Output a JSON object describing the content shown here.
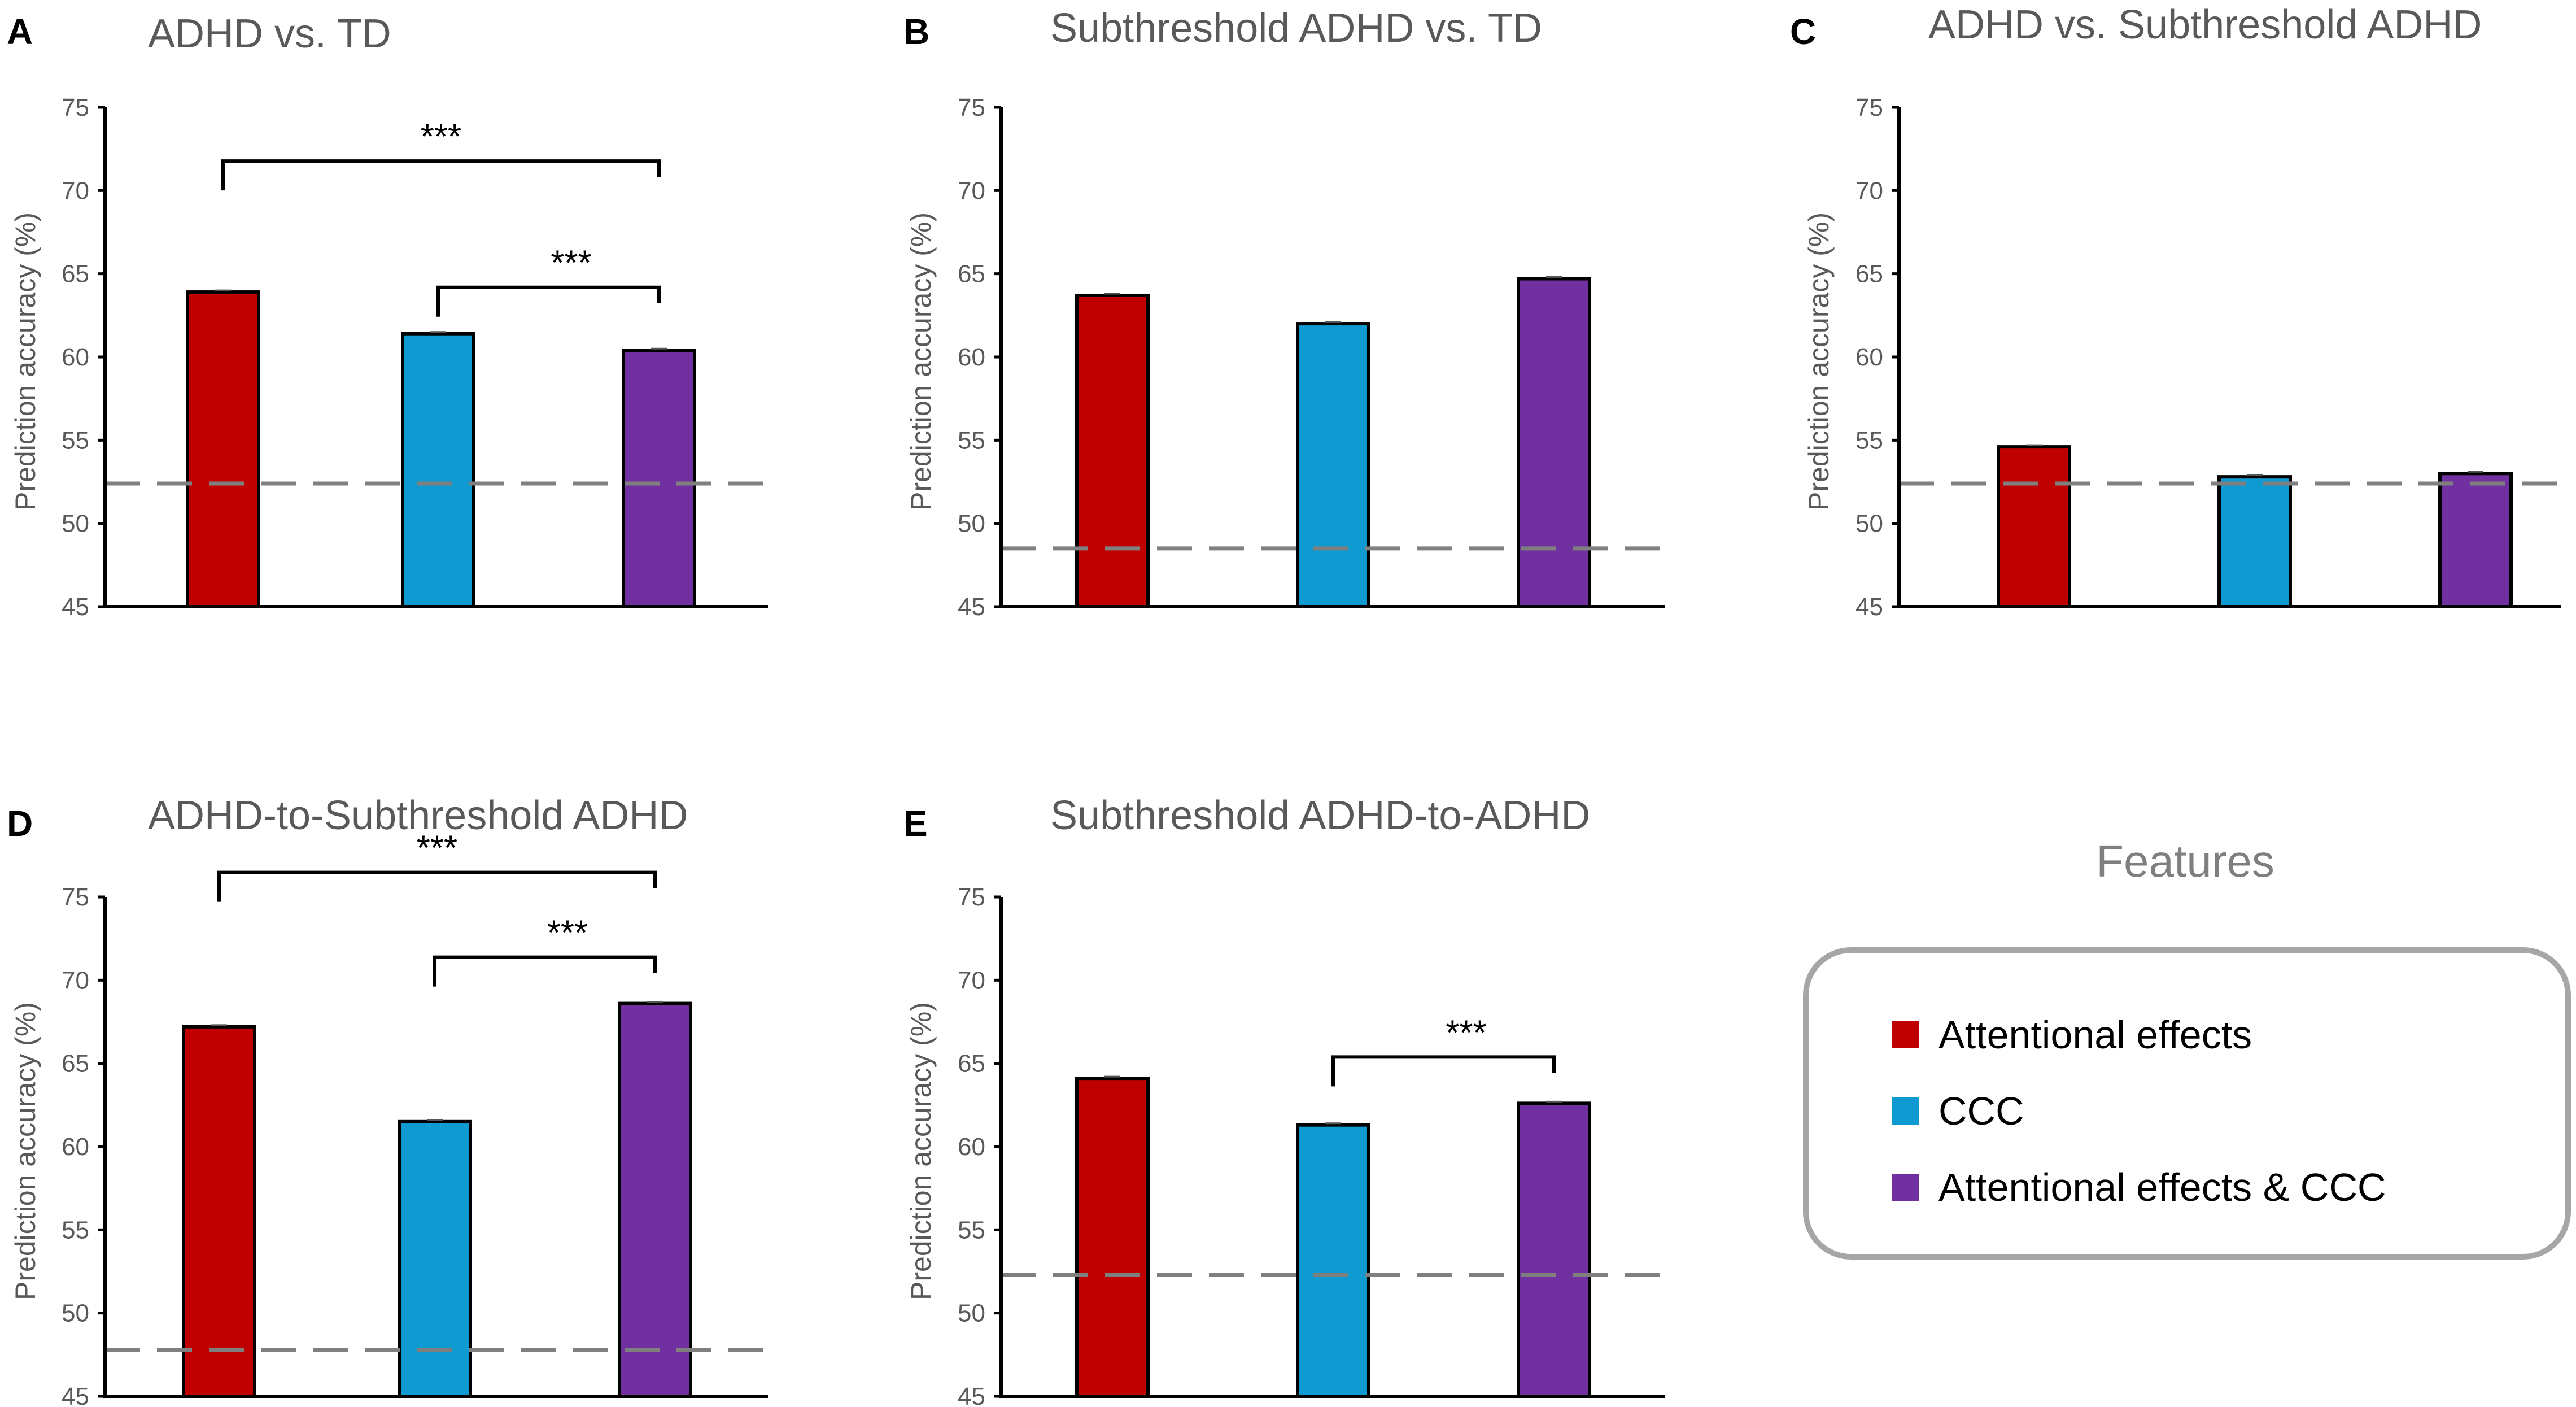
{
  "figure": {
    "legend": {
      "title": "Features",
      "items": [
        {
          "label": "Attentional effects",
          "color": "#c00000"
        },
        {
          "label": "CCC",
          "color": "#0f9ad1"
        },
        {
          "label": "Attentional effects & CCC",
          "color": "#7030a0"
        }
      ]
    }
  },
  "chart_data": [
    {
      "type": "bar",
      "panel": "A",
      "title": "ADHD vs. TD",
      "categories": [
        "Attentional effects",
        "CCC",
        "Attentional effects & CCC"
      ],
      "values": [
        63.9,
        61.4,
        60.4
      ],
      "colors": [
        "#c00000",
        "#0f9ad1",
        "#7030a0"
      ],
      "ylabel": "Prediction accuracy (%)",
      "ylim": [
        45,
        75
      ],
      "yticks": [
        45,
        50,
        55,
        60,
        65,
        70,
        75
      ],
      "chance": 52.4,
      "significance": [
        {
          "from": 0,
          "to": 2,
          "label": "***"
        },
        {
          "from": 1,
          "to": 2,
          "label": "***"
        }
      ]
    },
    {
      "type": "bar",
      "panel": "B",
      "title": "Subthreshold ADHD vs. TD",
      "categories": [
        "Attentional effects",
        "CCC",
        "Attentional effects & CCC"
      ],
      "values": [
        63.7,
        62.0,
        64.7
      ],
      "colors": [
        "#c00000",
        "#0f9ad1",
        "#7030a0"
      ],
      "ylabel": "Prediction accuracy (%)",
      "ylim": [
        45,
        75
      ],
      "yticks": [
        45,
        50,
        55,
        60,
        65,
        70,
        75
      ],
      "chance": 48.5,
      "significance": []
    },
    {
      "type": "bar",
      "panel": "C",
      "title": "ADHD vs. Subthreshold ADHD",
      "categories": [
        "Attentional effects",
        "CCC",
        "Attentional effects & CCC"
      ],
      "values": [
        54.6,
        52.8,
        53.0
      ],
      "colors": [
        "#c00000",
        "#0f9ad1",
        "#7030a0"
      ],
      "ylabel": "Prediction accuracy (%)",
      "ylim": [
        45,
        75
      ],
      "yticks": [
        45,
        50,
        55,
        60,
        65,
        70,
        75
      ],
      "chance": 52.4,
      "significance": []
    },
    {
      "type": "bar",
      "panel": "D",
      "title": "ADHD-to-Subthreshold ADHD",
      "categories": [
        "Attentional effects",
        "CCC",
        "Attentional effects & CCC"
      ],
      "values": [
        67.2,
        61.5,
        68.6
      ],
      "colors": [
        "#c00000",
        "#0f9ad1",
        "#7030a0"
      ],
      "ylabel": "Prediction accuracy (%)",
      "ylim": [
        45,
        75
      ],
      "yticks": [
        45,
        50,
        55,
        60,
        65,
        70,
        75
      ],
      "chance": 47.8,
      "significance": [
        {
          "from": 0,
          "to": 2,
          "label": "***"
        },
        {
          "from": 1,
          "to": 2,
          "label": "***"
        }
      ]
    },
    {
      "type": "bar",
      "panel": "E",
      "title": "Subthreshold ADHD-to-ADHD",
      "categories": [
        "Attentional effects",
        "CCC",
        "Attentional effects & CCC"
      ],
      "values": [
        64.1,
        61.3,
        62.6
      ],
      "colors": [
        "#c00000",
        "#0f9ad1",
        "#7030a0"
      ],
      "ylabel": "Prediction accuracy (%)",
      "ylim": [
        45,
        75
      ],
      "yticks": [
        45,
        50,
        55,
        60,
        65,
        70,
        75
      ],
      "chance": 52.3,
      "significance": [
        {
          "from": 1,
          "to": 2,
          "label": "***"
        }
      ]
    }
  ]
}
